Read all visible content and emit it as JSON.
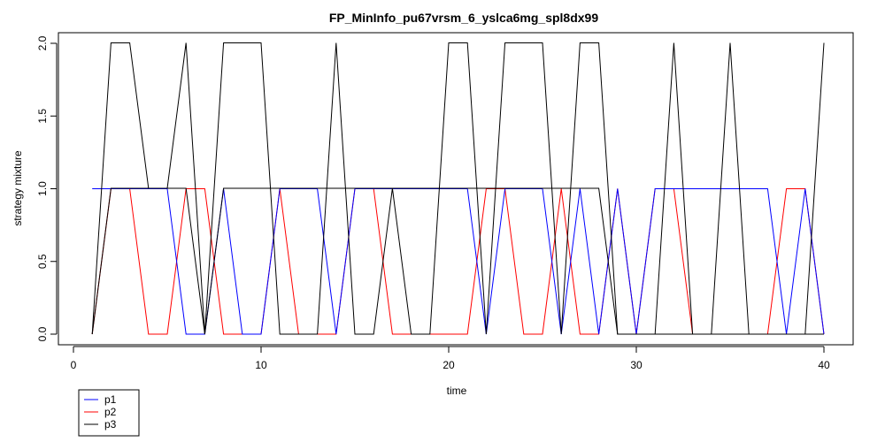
{
  "chart_data": {
    "type": "line",
    "title": "FP_MinInfo_pu67vrsm_6_yslca6mg_spl8dx99",
    "xlabel": "time",
    "ylabel": "strategy mixture",
    "xlim": [
      0,
      40
    ],
    "ylim": [
      0,
      2
    ],
    "x_ticks": [
      "0",
      "10",
      "20",
      "30",
      "40"
    ],
    "y_ticks": [
      "0.0",
      "0.5",
      "1.0",
      "1.5",
      "2.0"
    ],
    "grid": false,
    "legend_position": "bottom-left, outside plot",
    "x": [
      1,
      2,
      3,
      4,
      5,
      6,
      7,
      8,
      9,
      10,
      11,
      12,
      13,
      14,
      15,
      16,
      17,
      18,
      19,
      20,
      21,
      22,
      23,
      24,
      25,
      26,
      27,
      28,
      29,
      30,
      31,
      32,
      33,
      34,
      35,
      36,
      37,
      38,
      39,
      40
    ],
    "series": [
      {
        "name": "p1",
        "color": "#0000ff",
        "values": [
          1,
          1,
          1,
          1,
          1,
          0,
          0,
          1,
          0,
          0,
          1,
          1,
          1,
          0,
          1,
          1,
          1,
          1,
          1,
          1,
          1,
          0,
          1,
          1,
          1,
          0,
          1,
          0,
          1,
          0,
          1,
          1,
          1,
          1,
          1,
          1,
          1,
          0,
          1,
          0
        ]
      },
      {
        "name": "p2",
        "color": "#ff0000",
        "values": [
          0,
          1,
          1,
          0,
          0,
          1,
          1,
          0,
          0,
          0,
          1,
          0,
          0,
          0,
          1,
          1,
          0,
          0,
          0,
          0,
          0,
          1,
          1,
          0,
          0,
          1,
          0,
          0,
          1,
          0,
          1,
          1,
          0,
          0,
          0,
          0,
          0,
          1,
          1,
          0
        ]
      },
      {
        "name": "p3",
        "color": "#000000",
        "values": [
          0,
          2,
          2,
          1,
          1,
          2,
          0,
          2,
          2,
          2,
          0,
          0,
          0,
          2,
          0,
          0,
          1,
          0,
          0,
          2,
          2,
          0,
          2,
          2,
          2,
          0,
          2,
          2,
          0,
          0,
          0,
          2,
          0,
          0,
          2,
          0,
          0,
          0,
          0,
          2
        ]
      },
      {
        "name": "p3",
        "color": "#000000",
        "values": [
          0,
          1,
          1,
          1,
          1,
          1,
          0,
          1,
          1,
          1,
          1,
          1,
          1,
          1,
          1,
          1,
          1,
          1,
          1,
          1,
          1,
          1,
          1,
          1,
          1,
          1,
          1,
          1,
          0,
          0,
          0,
          0,
          0,
          0,
          0,
          0,
          0,
          0,
          0,
          0
        ]
      }
    ]
  }
}
